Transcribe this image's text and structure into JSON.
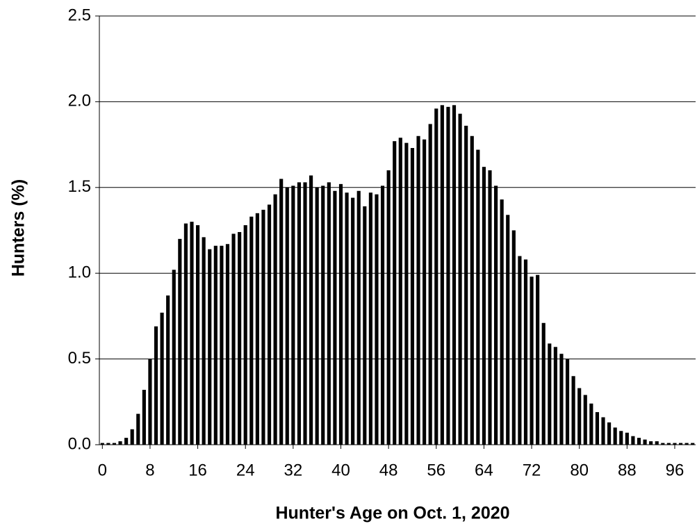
{
  "chart_data": {
    "type": "bar",
    "xlabel": "Hunter's Age on Oct. 1, 2020",
    "ylabel": "Hunters (%)",
    "x": [
      0,
      1,
      2,
      3,
      4,
      5,
      6,
      7,
      8,
      9,
      10,
      11,
      12,
      13,
      14,
      15,
      16,
      17,
      18,
      19,
      20,
      21,
      22,
      23,
      24,
      25,
      26,
      27,
      28,
      29,
      30,
      31,
      32,
      33,
      34,
      35,
      36,
      37,
      38,
      39,
      40,
      41,
      42,
      43,
      44,
      45,
      46,
      47,
      48,
      49,
      50,
      51,
      52,
      53,
      54,
      55,
      56,
      57,
      58,
      59,
      60,
      61,
      62,
      63,
      64,
      65,
      66,
      67,
      68,
      69,
      70,
      71,
      72,
      73,
      74,
      75,
      76,
      77,
      78,
      79,
      80,
      81,
      82,
      83,
      84,
      85,
      86,
      87,
      88,
      89,
      90,
      91,
      92,
      93,
      94,
      95,
      96,
      97,
      98,
      99
    ],
    "values": [
      0.01,
      0.01,
      0.01,
      0.02,
      0.04,
      0.09,
      0.18,
      0.32,
      0.5,
      0.69,
      0.77,
      0.87,
      1.02,
      1.2,
      1.29,
      1.3,
      1.28,
      1.21,
      1.14,
      1.16,
      1.16,
      1.17,
      1.23,
      1.24,
      1.28,
      1.33,
      1.35,
      1.37,
      1.4,
      1.46,
      1.55,
      1.5,
      1.51,
      1.53,
      1.53,
      1.57,
      1.5,
      1.51,
      1.53,
      1.48,
      1.52,
      1.47,
      1.44,
      1.48,
      1.39,
      1.47,
      1.46,
      1.51,
      1.6,
      1.77,
      1.79,
      1.76,
      1.73,
      1.8,
      1.78,
      1.87,
      1.96,
      1.98,
      1.97,
      1.98,
      1.93,
      1.86,
      1.8,
      1.72,
      1.62,
      1.6,
      1.51,
      1.43,
      1.34,
      1.25,
      1.1,
      1.08,
      0.98,
      0.99,
      0.71,
      0.59,
      0.57,
      0.53,
      0.5,
      0.4,
      0.33,
      0.29,
      0.24,
      0.19,
      0.16,
      0.13,
      0.1,
      0.08,
      0.07,
      0.05,
      0.04,
      0.03,
      0.02,
      0.02,
      0.01,
      0.01,
      0.01,
      0.01,
      0.01,
      0.01
    ],
    "color": "#000000",
    "xlim": [
      -0.5,
      99.5
    ],
    "xticks": [
      0,
      8,
      16,
      24,
      32,
      40,
      48,
      56,
      64,
      72,
      80,
      88,
      96
    ],
    "ylim": [
      0,
      2.5
    ],
    "yticks": [
      {
        "value": 0,
        "label": "0.0"
      },
      0.5,
      {
        "value": 1,
        "label": "1.0"
      },
      1.5,
      {
        "value": 2,
        "label": "2.0"
      },
      2.5
    ],
    "grid": true
  }
}
